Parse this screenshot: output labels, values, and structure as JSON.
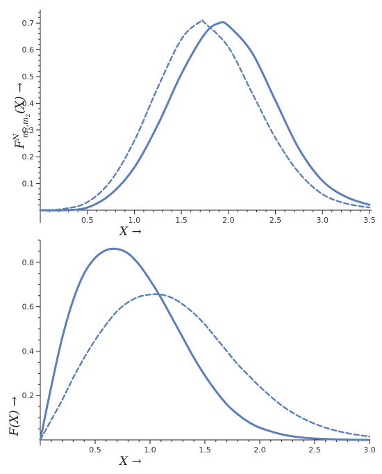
{
  "chart_data": [
    {
      "type": "line",
      "title": "",
      "xlabel": "X →",
      "ylabel_parts": {
        "base": "F",
        "sup": "N",
        "sub": "m",
        "sub1": "1",
        "comma": ",",
        "sub2": "m",
        "sub3": "2",
        "rest": "(X) →"
      },
      "xlim": [
        0,
        3.5
      ],
      "ylim": [
        0,
        0.75
      ],
      "xticks": [
        0.5,
        1.0,
        1.5,
        2.0,
        2.5,
        3.0,
        3.5
      ],
      "xtick_labels": [
        "0.5",
        "1.0",
        "1.5",
        "2.0",
        "2.5",
        "3.0",
        "3.5"
      ],
      "yticks": [
        0.1,
        0.2,
        0.3,
        0.4,
        0.5,
        0.6,
        0.7
      ],
      "ytick_labels": [
        "0.1",
        "0.2",
        "0.3",
        "0.4",
        "0.5",
        "0.6",
        "0.7"
      ],
      "series": [
        {
          "style": "solid",
          "color": "#5b7fbd",
          "x": [
            0,
            0.25,
            0.5,
            0.75,
            1.0,
            1.25,
            1.5,
            1.75,
            1.9,
            2.0,
            2.25,
            2.5,
            2.75,
            3.0,
            3.25,
            3.5
          ],
          "y": [
            0,
            0.0,
            0.01,
            0.06,
            0.16,
            0.32,
            0.51,
            0.66,
            0.7,
            0.69,
            0.59,
            0.41,
            0.23,
            0.11,
            0.05,
            0.02
          ]
        },
        {
          "style": "dashed",
          "color": "#5b7fbd",
          "x": [
            0,
            0.25,
            0.5,
            0.75,
            1.0,
            1.25,
            1.5,
            1.7,
            1.75,
            2.0,
            2.25,
            2.5,
            2.75,
            3.0,
            3.25,
            3.5
          ],
          "y": [
            0,
            0.005,
            0.03,
            0.11,
            0.26,
            0.46,
            0.64,
            0.705,
            0.7,
            0.61,
            0.44,
            0.27,
            0.14,
            0.06,
            0.025,
            0.01
          ]
        }
      ]
    },
    {
      "type": "line",
      "title": "",
      "xlabel": "X →",
      "ylabel": "F(X) →",
      "xlim": [
        0,
        3.0
      ],
      "ylim": [
        0,
        0.9
      ],
      "xticks": [
        0.5,
        1.0,
        1.5,
        2.0,
        2.5,
        3.0
      ],
      "xtick_labels": [
        "0.5",
        "1.0",
        "1.5",
        "2.0",
        "2.5",
        "3.0"
      ],
      "yticks": [
        0.2,
        0.4,
        0.6,
        0.8
      ],
      "ytick_labels": [
        "0.2",
        "0.4",
        "0.6",
        "0.8"
      ],
      "series": [
        {
          "style": "solid",
          "color": "#5b7fbd",
          "x": [
            0,
            0.1,
            0.2,
            0.3,
            0.4,
            0.5,
            0.6,
            0.7,
            0.8,
            0.9,
            1.0,
            1.1,
            1.2,
            1.3,
            1.4,
            1.5,
            1.6,
            1.7,
            1.8,
            1.9,
            2.0,
            2.2,
            2.4,
            2.6,
            2.8,
            3.0
          ],
          "y": [
            0,
            0.24,
            0.46,
            0.63,
            0.75,
            0.82,
            0.855,
            0.86,
            0.84,
            0.79,
            0.72,
            0.64,
            0.55,
            0.46,
            0.37,
            0.29,
            0.22,
            0.16,
            0.115,
            0.08,
            0.055,
            0.025,
            0.01,
            0.004,
            0.001,
            0.0
          ]
        },
        {
          "style": "dashed",
          "color": "#5b7fbd",
          "x": [
            0,
            0.1,
            0.2,
            0.3,
            0.4,
            0.5,
            0.6,
            0.7,
            0.8,
            0.9,
            1.0,
            1.1,
            1.2,
            1.3,
            1.4,
            1.5,
            1.6,
            1.7,
            1.8,
            1.9,
            2.0,
            2.2,
            2.4,
            2.6,
            2.8,
            3.0
          ],
          "y": [
            0,
            0.09,
            0.18,
            0.28,
            0.37,
            0.45,
            0.52,
            0.58,
            0.62,
            0.645,
            0.655,
            0.655,
            0.64,
            0.61,
            0.57,
            0.52,
            0.46,
            0.4,
            0.34,
            0.29,
            0.24,
            0.155,
            0.095,
            0.055,
            0.03,
            0.015
          ]
        }
      ]
    }
  ]
}
